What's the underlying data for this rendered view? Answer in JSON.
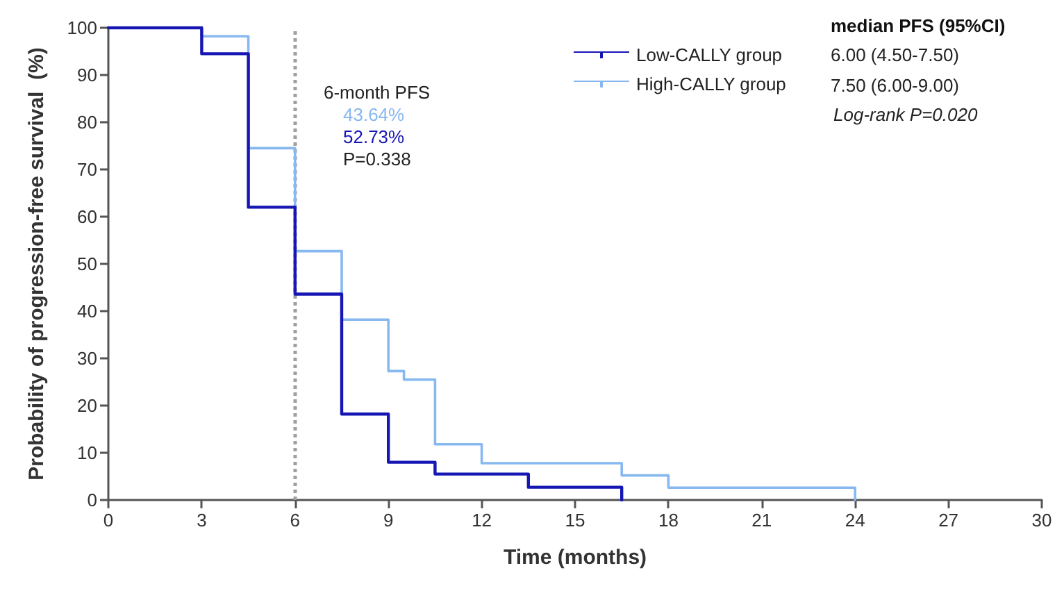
{
  "chart_data": {
    "type": "step",
    "xlabel": "Time (months)",
    "ylabel": "Probability of progression-free survival  (%)",
    "series": [
      {
        "name": "Low-CALLY group",
        "color": "#1616b4",
        "x": [
          0,
          3,
          4.5,
          6,
          7.5,
          9,
          10.5,
          13.5,
          16.5
        ],
        "values": [
          100,
          94.5,
          62,
          43.6,
          18.2,
          8,
          5.5,
          2.7,
          0
        ]
      },
      {
        "name": "High-CALLY group",
        "color": "#88b8f0",
        "x": [
          0,
          3,
          4.5,
          6,
          7.5,
          9,
          9.5,
          10.5,
          12,
          16.5,
          18,
          24
        ],
        "values": [
          100,
          98.2,
          74.5,
          52.7,
          38.2,
          27.3,
          25.5,
          11.8,
          7.8,
          5.2,
          2.6,
          0
        ]
      }
    ],
    "annotations": [
      "6-month PFS",
      "43.64%",
      "52.73%",
      "P=0.338",
      "median PFS (95%CI)",
      "6.00 (4.50-7.50)",
      "7.50 (6.00-9.00)",
      "Log-rank P=0.020"
    ],
    "ref_lines": [
      {
        "axis": "x",
        "value": 6,
        "label": null,
        "color": "#a0a0a0",
        "line_style": "dotted"
      }
    ],
    "xlim": [
      0,
      30
    ],
    "xticks": [
      0,
      3,
      6,
      9,
      12,
      15,
      18,
      21,
      24,
      27,
      30
    ],
    "ylim": [
      0,
      100
    ],
    "yticks": [
      0,
      10,
      20,
      30,
      40,
      50,
      60,
      70,
      80,
      90,
      100
    ],
    "grid": false,
    "legend": "top right",
    "line_style": "solid",
    "marker": "none"
  }
}
